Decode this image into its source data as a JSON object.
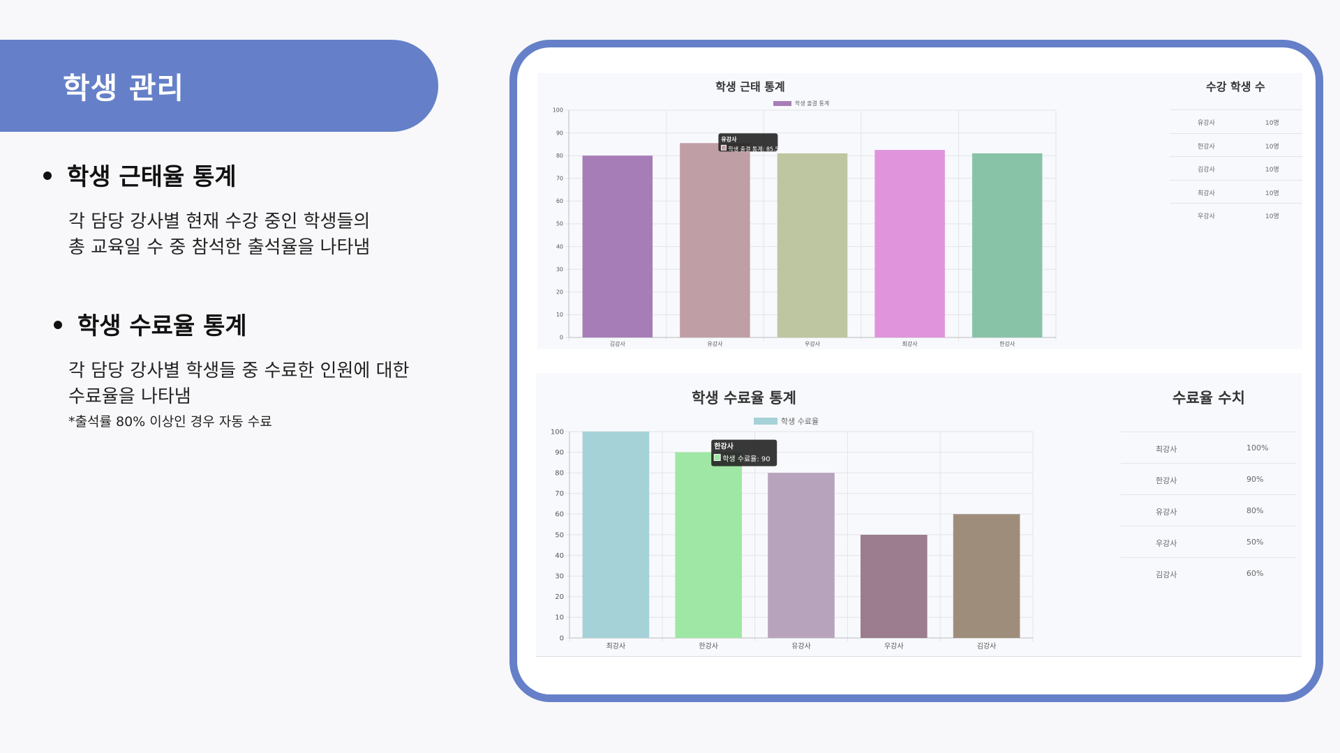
{
  "title": "학생 관리",
  "sections": [
    {
      "heading": "학생 근태율 통계",
      "desc1": "각 담당 강사별 현재 수강 중인 학생들의",
      "desc2": "총 교육일 수 중 참석한 출석율을 나타냄"
    },
    {
      "heading": "학생 수료율 통계",
      "desc1": "각 담당 강사별  학생들 중 수료한 인원에 대한",
      "desc2": "수료율을 나타냄",
      "note": "*출석률 80% 이상인 경우 자동 수료"
    }
  ],
  "panel1": {
    "side_title": "수강 학생 수",
    "rows": [
      {
        "name": "유강사",
        "value": "10명"
      },
      {
        "name": "한강사",
        "value": "10명"
      },
      {
        "name": "김강사",
        "value": "10명"
      },
      {
        "name": "최강사",
        "value": "10명"
      },
      {
        "name": "우강사",
        "value": "10명"
      }
    ]
  },
  "panel2": {
    "side_title": "수료율 수치",
    "rows": [
      {
        "name": "최강사",
        "value": "100%"
      },
      {
        "name": "한강사",
        "value": "90%"
      },
      {
        "name": "유강사",
        "value": "80%"
      },
      {
        "name": "우강사",
        "value": "50%"
      },
      {
        "name": "김강사",
        "value": "60%"
      }
    ]
  },
  "chart_data": [
    {
      "type": "bar",
      "title": "학생 근태 통계",
      "legend": "학생 출결 통계",
      "categories": [
        "김강사",
        "유강사",
        "우강사",
        "최강사",
        "한강사"
      ],
      "values": [
        80,
        85.5,
        81,
        82.5,
        81
      ],
      "colors": [
        "#a77db7",
        "#c09ea5",
        "#bec5a1",
        "#df94dc",
        "#89c3a7"
      ],
      "ylim": [
        0,
        100
      ],
      "yticks": [
        0,
        10,
        20,
        30,
        40,
        50,
        60,
        70,
        80,
        90,
        100
      ],
      "tooltip": {
        "index": 1,
        "title": "유강사",
        "label": "학생 출결 통계: 85.5"
      }
    },
    {
      "type": "bar",
      "title": "학생 수료율 통계",
      "legend": "학생 수료율",
      "categories": [
        "최강사",
        "한강사",
        "유강사",
        "우강사",
        "김강사"
      ],
      "values": [
        100,
        90,
        80,
        50,
        60
      ],
      "colors": [
        "#a5d2d6",
        "#9fe7a4",
        "#b8a3bd",
        "#9b7d8f",
        "#9f8d7c"
      ],
      "ylim": [
        0,
        100
      ],
      "yticks": [
        0,
        10,
        20,
        30,
        40,
        50,
        60,
        70,
        80,
        90,
        100
      ],
      "tooltip": {
        "index": 1,
        "title": "한강사",
        "label": "학생 수료율: 90"
      }
    }
  ]
}
